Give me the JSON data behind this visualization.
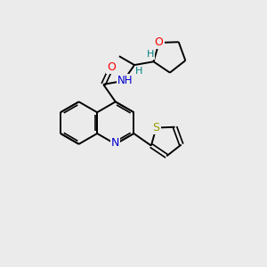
{
  "background_color": "#ebebeb",
  "atom_colors": {
    "C": "#000000",
    "N": "#0000cc",
    "O": "#ff0000",
    "S": "#999900",
    "H": "#008080"
  },
  "bond_color": "#000000",
  "figsize": [
    3.0,
    3.0
  ],
  "dpi": 100
}
